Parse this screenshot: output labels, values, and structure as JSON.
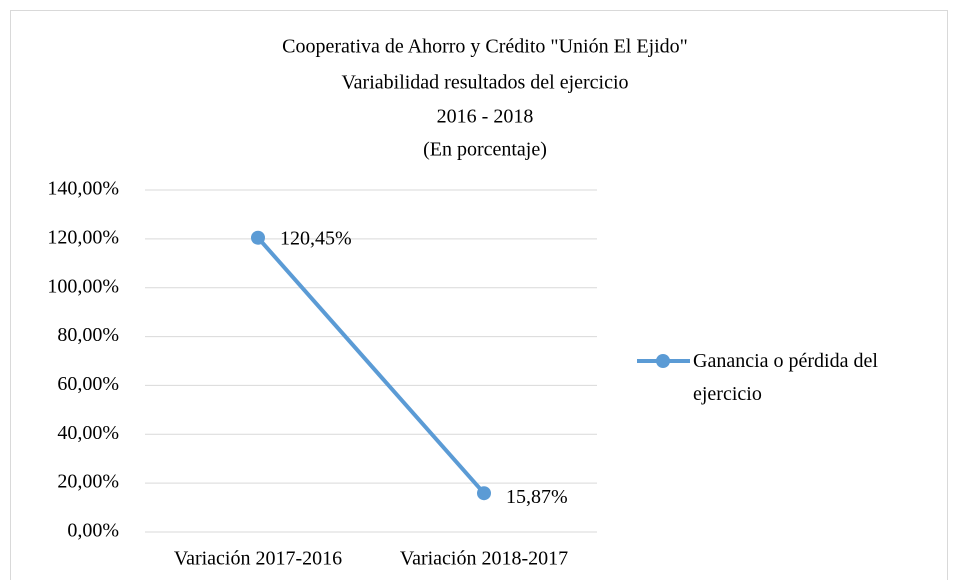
{
  "chart_data": {
    "type": "line",
    "title": [
      "Cooperativa de Ahorro y Crédito \"Unión El Ejido\"",
      "Variabilidad resultados del ejercicio",
      "2016 - 2018",
      "(En porcentaje)"
    ],
    "categories": [
      "Variación 2017-2016",
      "Variación 2018-2017"
    ],
    "series": [
      {
        "name": "Ganancia o pérdida del ejercicio",
        "color": "#5b9bd5",
        "values": [
          120.45,
          15.87
        ],
        "value_labels": [
          "120,45%",
          "15,87%"
        ]
      }
    ],
    "ylim": [
      0,
      140
    ],
    "yticks": [
      {
        "value": 0,
        "label": "0,00%"
      },
      {
        "value": 20,
        "label": "20,00%"
      },
      {
        "value": 40,
        "label": "40,00%"
      },
      {
        "value": 60,
        "label": "60,00%"
      },
      {
        "value": 80,
        "label": "80,00%"
      },
      {
        "value": 100,
        "label": "100,00%"
      },
      {
        "value": 120,
        "label": "120,00%"
      },
      {
        "value": 140,
        "label": "140,00%"
      }
    ],
    "grid": true,
    "legend": "right"
  }
}
